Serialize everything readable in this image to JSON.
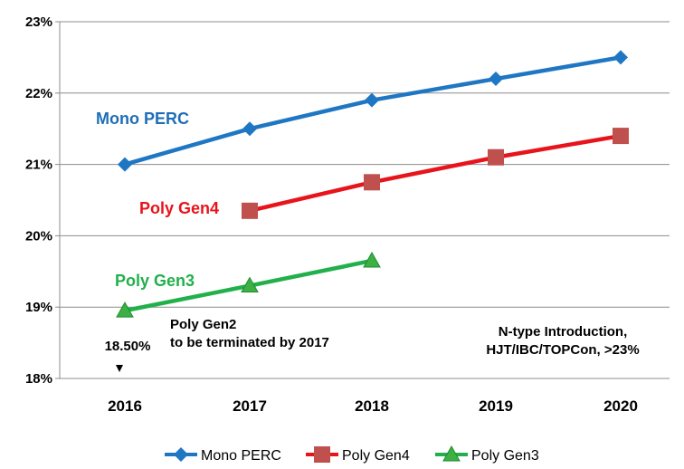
{
  "chart_data": {
    "type": "line",
    "title": "",
    "xlabel": "",
    "ylabel": "",
    "x": [
      "2016",
      "2017",
      "2018",
      "2019",
      "2020"
    ],
    "ylim": [
      18,
      23
    ],
    "yticks": [
      "18%",
      "19%",
      "20%",
      "21%",
      "22%",
      "23%"
    ],
    "grid": "horizontal",
    "legend_position": "bottom",
    "series": [
      {
        "name": "Mono PERC",
        "label": "Mono PERC",
        "color": "#1f77c4",
        "label_color": "#1f6eb5",
        "marker": "diamond",
        "values": [
          21.0,
          21.5,
          21.9,
          22.2,
          22.5
        ]
      },
      {
        "name": "Poly Gen4",
        "label": "Poly Gen4",
        "color": "#e8141b",
        "label_color": "#e8141b",
        "marker": "square",
        "marker_color": "#c0504d",
        "values": [
          null,
          20.35,
          20.75,
          21.1,
          21.4
        ]
      },
      {
        "name": "Poly Gen3",
        "label": "Poly Gen3",
        "color": "#21b04b",
        "label_color": "#21b04b",
        "marker": "triangle",
        "marker_color": "#3cb043",
        "values": [
          18.95,
          19.3,
          19.65,
          null,
          null
        ]
      }
    ],
    "annotations": [
      {
        "id": "gen2",
        "lines": [
          "Poly Gen2",
          "to be terminated by 2017"
        ]
      },
      {
        "id": "ntype",
        "lines": [
          "N-type Introduction,",
          "HJT/IBC/TOPCon, >23%"
        ]
      },
      {
        "id": "gen2-value",
        "lines": [
          "18.50%"
        ],
        "value": 18.5,
        "x": "2016",
        "marker": "down-triangle"
      }
    ]
  }
}
